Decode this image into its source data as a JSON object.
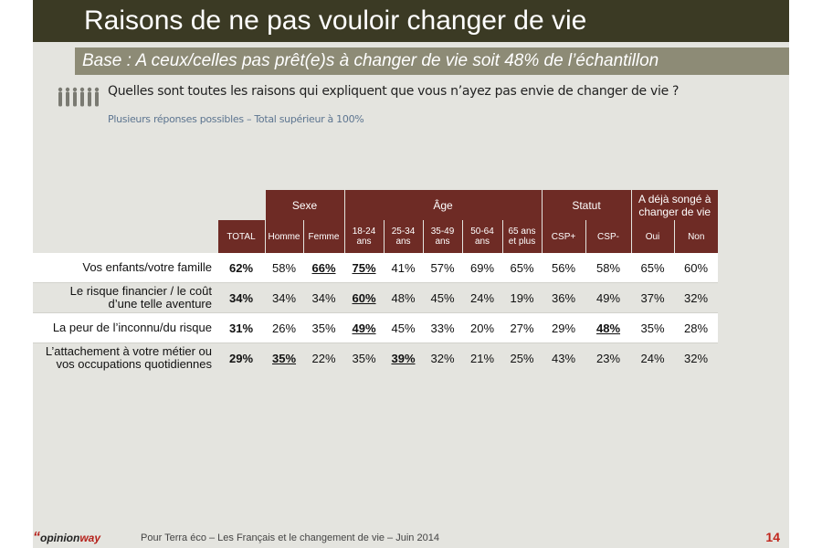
{
  "title": "Raisons de ne pas vouloir changer de vie",
  "base": "Base : A ceux/celles pas prêt(e)s à changer de vie soit 48% de l’échantillon",
  "question": "Quelles sont toutes les raisons qui expliquent que vous n’ayez pas envie de changer de vie ?",
  "subquestion": "Plusieurs réponses possibles – Total supérieur à 100%",
  "people_icon": "people-silhouettes-icon",
  "groups": {
    "sexe": "Sexe",
    "age": "Âge",
    "statut": "Statut",
    "songe_line1": "A déjà songé à",
    "songe_line2": "changer de vie"
  },
  "columns": [
    {
      "l1": "TOTAL",
      "l2": ""
    },
    {
      "l1": "Homme",
      "l2": ""
    },
    {
      "l1": "Femme",
      "l2": ""
    },
    {
      "l1": "18-24",
      "l2": "ans"
    },
    {
      "l1": "25-34",
      "l2": "ans"
    },
    {
      "l1": "35-49",
      "l2": "ans"
    },
    {
      "l1": "50-64",
      "l2": "ans"
    },
    {
      "l1": "65 ans",
      "l2": "et plus"
    },
    {
      "l1": "CSP+",
      "l2": ""
    },
    {
      "l1": "CSP-",
      "l2": ""
    },
    {
      "l1": "Oui",
      "l2": ""
    },
    {
      "l1": "Non",
      "l2": ""
    }
  ],
  "rows": [
    {
      "l1": "Vos enfants/votre famille",
      "l2": "",
      "values": [
        "62%",
        "58%",
        "66%",
        "75%",
        "41%",
        "57%",
        "69%",
        "65%",
        "56%",
        "58%",
        "65%",
        "60%"
      ],
      "highlight": [
        2,
        3
      ]
    },
    {
      "l1": "Le risque financier / le coût",
      "l2": "d’une telle aventure",
      "values": [
        "34%",
        "34%",
        "34%",
        "60%",
        "48%",
        "45%",
        "24%",
        "19%",
        "36%",
        "49%",
        "37%",
        "32%"
      ],
      "highlight": [
        3
      ]
    },
    {
      "l1": "La peur de l’inconnu/du risque",
      "l2": "",
      "values": [
        "31%",
        "26%",
        "35%",
        "49%",
        "45%",
        "33%",
        "20%",
        "27%",
        "29%",
        "48%",
        "35%",
        "28%"
      ],
      "highlight": [
        3,
        9
      ]
    },
    {
      "l1": "L’attachement à votre métier ou",
      "l2": "vos occupations quotidiennes",
      "values": [
        "29%",
        "35%",
        "22%",
        "35%",
        "39%",
        "32%",
        "21%",
        "25%",
        "43%",
        "23%",
        "24%",
        "32%"
      ],
      "highlight": [
        1,
        4
      ]
    }
  ],
  "footer": {
    "brand_quote": "“",
    "brand_opinion": "opinion",
    "brand_way": "way",
    "text": "Pour Terra éco – Les Français et le changement de vie – Juin 2014",
    "page": "14"
  },
  "colors": {
    "title_bg": "#3b3a24",
    "base_bg": "#8d8b76",
    "header_bg": "#6e2b25",
    "slide_bg": "#e4e4df",
    "accent": "#c0261d"
  }
}
